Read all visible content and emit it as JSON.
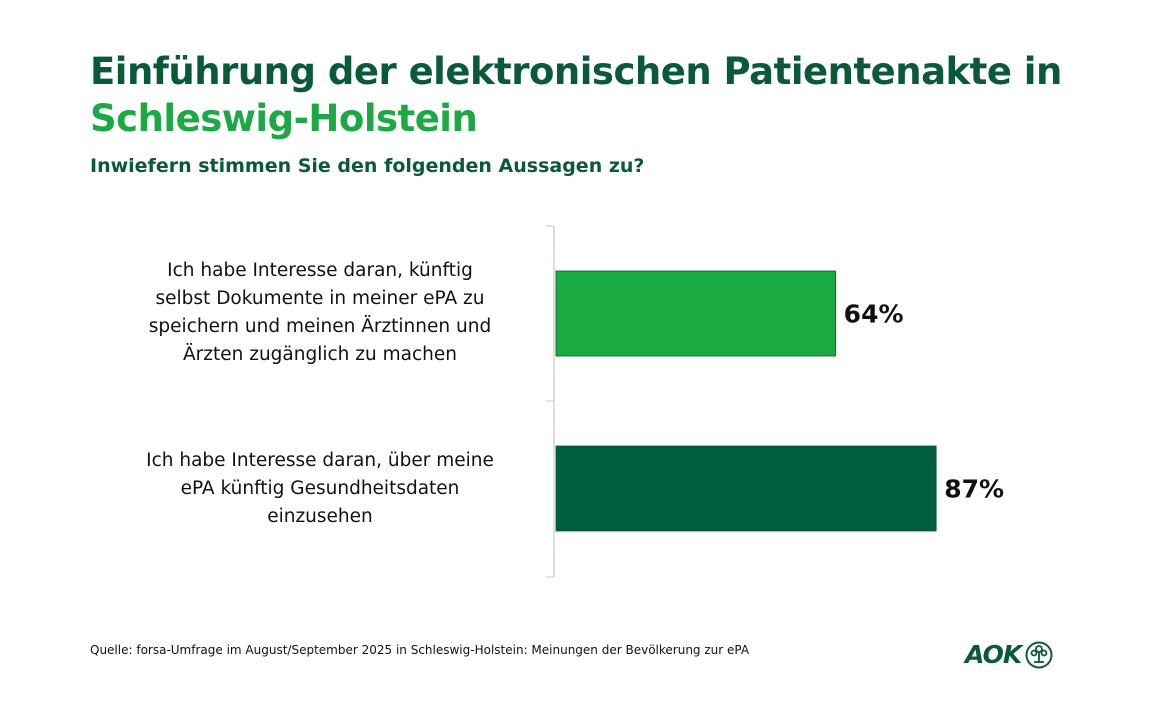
{
  "chart_data": {
    "type": "bar",
    "orientation": "horizontal",
    "title": "Einführung der elektronischen Patientenakte in",
    "title_highlight": "Schleswig-Holstein",
    "subtitle": "Inwiefern stimmen Sie den folgenden Aussagen zu?",
    "categories": [
      "Ich habe Interesse daran, künftig selbst Dokumente in meiner ePA zu speichern und meinen Ärztinnen und Ärzten zugänglich zu machen",
      "Ich habe Interesse daran, über meine ePA künftig Gesundheitsdaten einzusehen"
    ],
    "category_lines": [
      [
        "Ich habe Interesse daran, künftig",
        "selbst Dokumente in meiner ePA zu",
        "speichern und meinen Ärztinnen und",
        "Ärzten zugänglich zu machen"
      ],
      [
        "Ich habe Interesse daran, über meine",
        "ePA künftig Gesundheitsdaten",
        "einzusehen"
      ]
    ],
    "values": [
      64,
      87
    ],
    "data_labels": [
      "64%",
      "87%"
    ],
    "colors": [
      "#1aaa42",
      "#005e3c"
    ],
    "xlim": [
      0,
      100
    ],
    "unit": "%",
    "grid": false
  },
  "footer": {
    "source": "Quelle: forsa-Umfrage im August/September 2025 in Schleswig-Holstein: Meinungen der Bevölkerung zur ePA",
    "logo_text": "AOK"
  }
}
